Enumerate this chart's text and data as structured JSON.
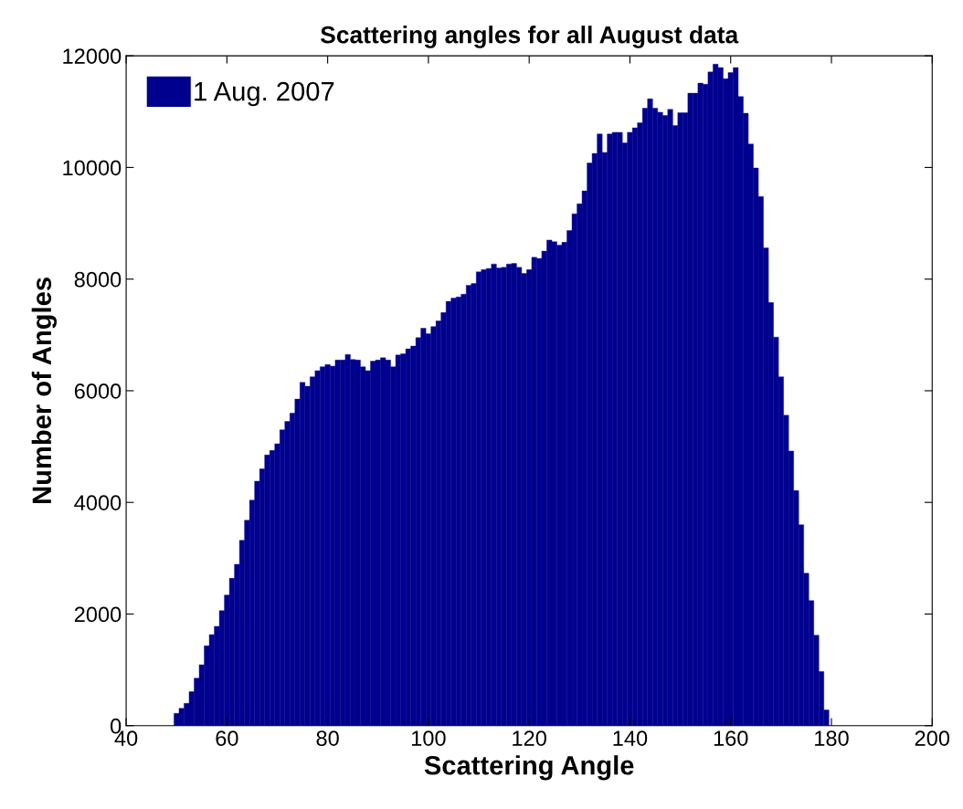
{
  "chart_data": {
    "type": "histogram",
    "title": "Scattering angles for all August data",
    "xlabel": "Scattering Angle",
    "ylabel": "Number of Angles",
    "bins": [
      49.5,
      50.5,
      51.5,
      52.5,
      53.5,
      54.5,
      55.5,
      56.5,
      57.5,
      58.5,
      59.5,
      60.5,
      61.5,
      62.5,
      63.5,
      64.5,
      65.5,
      66.5,
      67.5,
      68.5,
      69.5,
      70.5,
      71.5,
      72.5,
      73.5,
      74.5,
      75.5,
      76.5,
      77.5,
      78.5,
      79.5,
      80.5,
      81.5,
      82.5,
      83.5,
      84.5,
      85.5,
      86.5,
      87.5,
      88.5,
      89.5,
      90.5,
      91.5,
      92.5,
      93.5,
      94.5,
      95.5,
      96.5,
      97.5,
      98.5,
      99.5,
      100.5,
      101.5,
      102.5,
      103.5,
      104.5,
      105.5,
      106.5,
      107.5,
      108.5,
      109.5,
      110.5,
      111.5,
      112.5,
      113.5,
      114.5,
      115.5,
      116.5,
      117.5,
      118.5,
      119.5,
      120.5,
      121.5,
      122.5,
      123.5,
      124.5,
      125.5,
      126.5,
      127.5,
      128.5,
      129.5,
      130.5,
      131.5,
      132.5,
      133.5,
      134.5,
      135.5,
      136.5,
      137.5,
      138.5,
      139.5,
      140.5,
      141.5,
      142.5,
      143.5,
      144.5,
      145.5,
      146.5,
      147.5,
      148.5,
      149.5,
      150.5,
      151.5,
      152.5,
      153.5,
      154.5,
      155.5,
      156.5,
      157.5,
      158.5,
      159.5,
      160.5,
      161.5,
      162.5,
      163.5,
      164.5,
      165.5,
      166.5,
      167.5,
      168.5,
      169.5,
      170.5,
      171.5,
      172.5,
      173.5,
      174.5,
      175.5,
      176.5,
      177.5,
      178.5,
      179.5
    ],
    "series": [
      {
        "name": "1 Aug. 2007",
        "color": "#00008f",
        "values": [
          220,
          310,
          400,
          610,
          850,
          1090,
          1430,
          1630,
          1780,
          2060,
          2340,
          2640,
          2890,
          3320,
          3680,
          4040,
          4380,
          4600,
          4850,
          4930,
          5050,
          5300,
          5450,
          5600,
          5850,
          6150,
          6080,
          6250,
          6360,
          6430,
          6470,
          6440,
          6550,
          6550,
          6650,
          6560,
          6550,
          6430,
          6360,
          6530,
          6550,
          6590,
          6550,
          6430,
          6640,
          6660,
          6750,
          6800,
          6950,
          7120,
          7020,
          7150,
          7250,
          7400,
          7600,
          7660,
          7680,
          7730,
          7890,
          7920,
          8130,
          8170,
          8190,
          8270,
          8200,
          8210,
          8270,
          8280,
          8210,
          8100,
          8170,
          8390,
          8370,
          8500,
          8700,
          8670,
          8610,
          8660,
          8870,
          9170,
          9350,
          9580,
          10080,
          10250,
          10600,
          10270,
          10600,
          10630,
          10630,
          10440,
          10630,
          10710,
          10800,
          11060,
          11230,
          11060,
          10990,
          10930,
          11040,
          10750,
          10980,
          10980,
          11330,
          11330,
          11510,
          11490,
          11710,
          11850,
          11790,
          11590,
          11700,
          11790,
          11270,
          10970,
          10420,
          9990,
          9480,
          8560,
          7580,
          6960,
          6250,
          5560,
          4920,
          4210,
          3600,
          2730,
          2240,
          1620,
          970,
          280
        ]
      }
    ],
    "xlim": [
      40,
      200
    ],
    "xticks": [
      40,
      60,
      80,
      100,
      120,
      140,
      160,
      180,
      200
    ],
    "ylim": [
      0,
      12000
    ],
    "yticks": [
      0,
      2000,
      4000,
      6000,
      8000,
      10000,
      12000
    ],
    "legend": "top left"
  }
}
